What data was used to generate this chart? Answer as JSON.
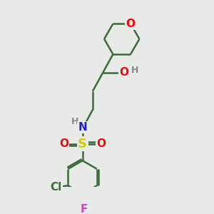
{
  "bg_color": "#e8eae8",
  "bond_color": "#3a6b3a",
  "line_width": 1.8,
  "atom_colors": {
    "O": "#ff0000",
    "N": "#2020cc",
    "S": "#cccc00",
    "Cl": "#3a6b3a",
    "F": "#cc44cc",
    "H": "#888888",
    "C": "#3a6b3a"
  },
  "font_size": 11
}
